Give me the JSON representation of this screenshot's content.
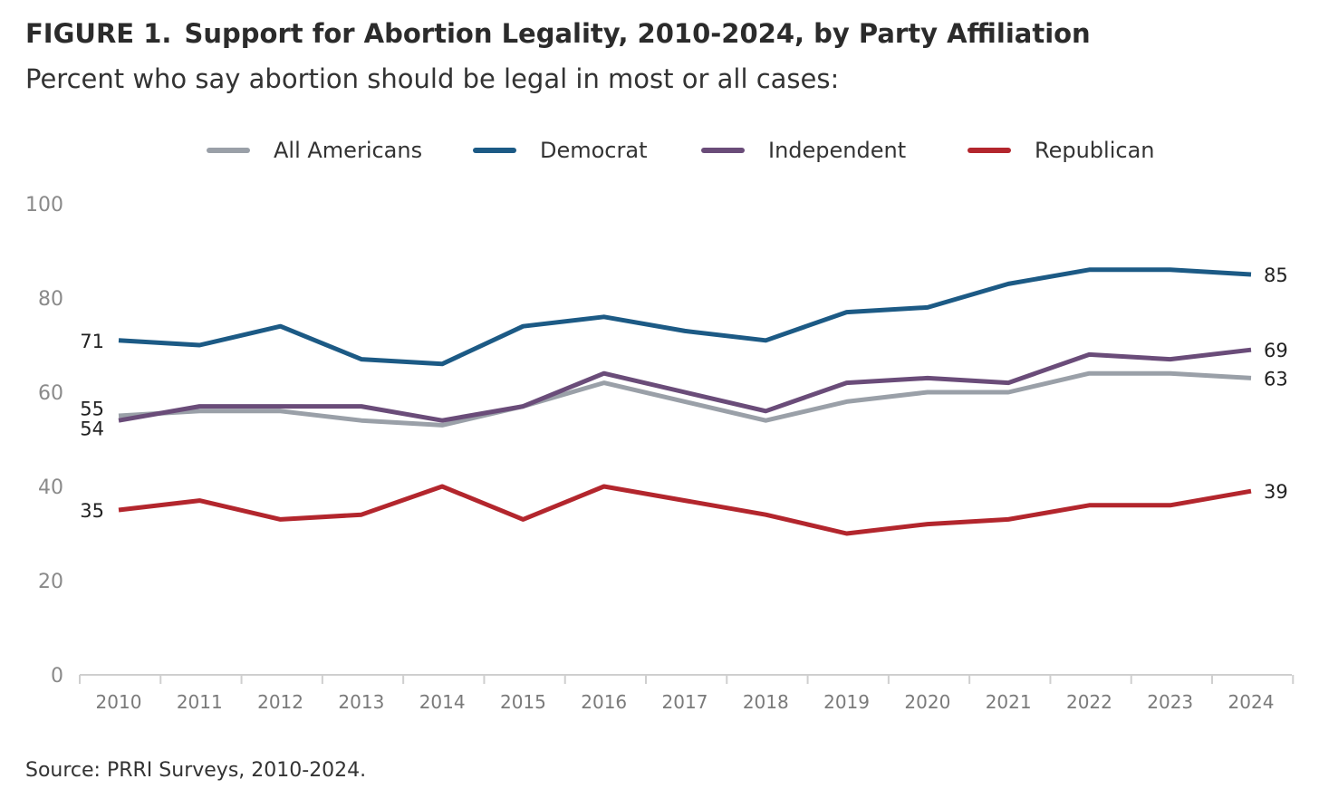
{
  "title": {
    "figure_label": "FIGURE 1.",
    "text": "Support for Abortion Legality, 2010-2024, by Party Affiliation"
  },
  "subtitle": "Percent who say abortion should be legal in most or all cases:",
  "source": "Source: PRRI Surveys, 2010-2024.",
  "chart_data": {
    "type": "line",
    "title": "FIGURE 1.  Support for Abortion Legality, 2010-2024, by Party Affiliation",
    "subtitle": "Percent who say abortion should be legal in most or all cases:",
    "x": [
      "2010",
      "2011",
      "2012",
      "2013",
      "2014",
      "2015",
      "2016",
      "2017",
      "2018",
      "2019",
      "2020",
      "2021",
      "2022",
      "2023",
      "2024"
    ],
    "ylim": [
      0,
      100
    ],
    "yticks": [
      0,
      20,
      40,
      60,
      80,
      100
    ],
    "legend_position": "top-center",
    "series": [
      {
        "name": "All Americans",
        "color": "#9aa0a8",
        "values": [
          55,
          56,
          56,
          54,
          53,
          57,
          62,
          58,
          54,
          58,
          60,
          60,
          64,
          64,
          63
        ],
        "labels": [
          {
            "index": 0,
            "text": "55",
            "side": "left"
          },
          {
            "index": 14,
            "text": "63",
            "side": "right"
          }
        ]
      },
      {
        "name": "Democrat",
        "color": "#1c5a85",
        "values": [
          71,
          70,
          74,
          67,
          66,
          74,
          76,
          73,
          71,
          77,
          78,
          83,
          86,
          86,
          85
        ],
        "labels": [
          {
            "index": 0,
            "text": "71",
            "side": "left"
          },
          {
            "index": 14,
            "text": "85",
            "side": "right"
          }
        ]
      },
      {
        "name": "Independent",
        "color": "#6a4c79",
        "values": [
          54,
          57,
          57,
          57,
          54,
          57,
          64,
          60,
          56,
          62,
          63,
          62,
          68,
          67,
          69
        ],
        "labels": [
          {
            "index": 0,
            "text": "54",
            "side": "left"
          },
          {
            "index": 14,
            "text": "69",
            "side": "right"
          }
        ]
      },
      {
        "name": "Republican",
        "color": "#b3262d",
        "values": [
          35,
          37,
          33,
          34,
          40,
          33,
          40,
          37,
          34,
          30,
          32,
          33,
          36,
          36,
          39
        ],
        "labels": [
          {
            "index": 0,
            "text": "35",
            "side": "left"
          },
          {
            "index": 14,
            "text": "39",
            "side": "right"
          }
        ]
      }
    ]
  }
}
